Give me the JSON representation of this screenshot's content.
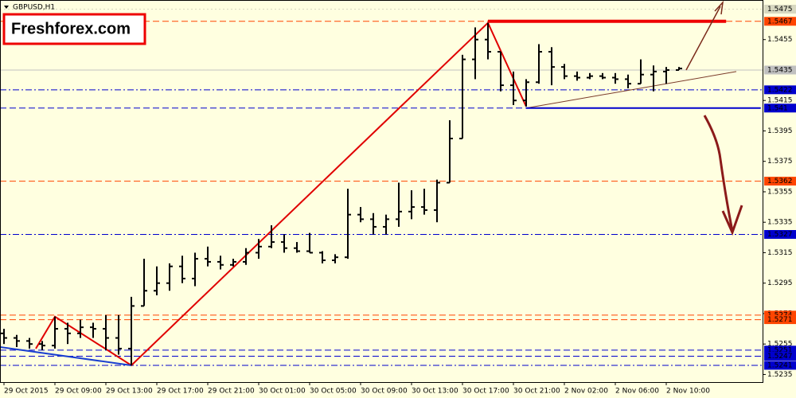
{
  "chart_data": {
    "type": "ohlc",
    "title": "GBPUSD,H1",
    "watermark": "Freshforex.com",
    "categories": [
      "29 Oct 2015",
      null,
      null,
      null,
      "29 Oct 09:00",
      null,
      null,
      null,
      "29 Oct 13:00",
      null,
      null,
      null,
      "29 Oct 17:00",
      null,
      null,
      null,
      "29 Oct 21:00",
      null,
      null,
      null,
      "30 Oct 01:00",
      null,
      null,
      null,
      "30 Oct 05:00",
      null,
      null,
      null,
      "30 Oct 09:00",
      null,
      null,
      null,
      "30 Oct 13:00",
      null,
      null,
      null,
      "30 Oct 17:00",
      null,
      null,
      null,
      "30 Oct 21:00",
      null,
      null,
      null,
      "2 Nov 02:00",
      null,
      null,
      null,
      "2 Nov 06:00",
      null,
      null,
      null,
      "2 Nov 10:00",
      null
    ],
    "ohlc": [
      [
        1.5262,
        1.5265,
        1.5255,
        1.5259
      ],
      [
        1.5259,
        1.5261,
        1.5253,
        1.5257
      ],
      [
        1.5257,
        1.5259,
        1.5252,
        1.5255
      ],
      [
        1.5255,
        1.5257,
        1.5251,
        1.5254
      ],
      [
        1.5254,
        1.5273,
        1.5252,
        1.5265
      ],
      [
        1.5265,
        1.5269,
        1.5255,
        1.5262
      ],
      [
        1.5262,
        1.5271,
        1.5259,
        1.5266
      ],
      [
        1.5266,
        1.5269,
        1.5259,
        1.5265
      ],
      [
        1.5265,
        1.5274,
        1.5251,
        1.5259
      ],
      [
        1.5259,
        1.5274,
        1.5248,
        1.5252
      ],
      [
        1.5252,
        1.5286,
        1.5241,
        1.528
      ],
      [
        1.528,
        1.5311,
        1.528,
        1.529
      ],
      [
        1.529,
        1.5306,
        1.5287,
        1.5295
      ],
      [
        1.5295,
        1.5308,
        1.529,
        1.5306
      ],
      [
        1.5306,
        1.5313,
        1.5295,
        1.5298
      ],
      [
        1.5298,
        1.5315,
        1.5293,
        1.5311
      ],
      [
        1.5311,
        1.5319,
        1.5306,
        1.5309
      ],
      [
        1.5309,
        1.5313,
        1.5304,
        1.5307
      ],
      [
        1.5307,
        1.5311,
        1.5306,
        1.5309
      ],
      [
        1.5309,
        1.5318,
        1.5307,
        1.5315
      ],
      [
        1.5315,
        1.5324,
        1.5311,
        1.5319
      ],
      [
        1.5319,
        1.5333,
        1.5318,
        1.5322
      ],
      [
        1.5322,
        1.5327,
        1.5315,
        1.5318
      ],
      [
        1.5318,
        1.5322,
        1.5315,
        1.5316
      ],
      [
        1.5316,
        1.5328,
        1.5315,
        1.5315
      ],
      [
        1.5315,
        1.5316,
        1.5308,
        1.531
      ],
      [
        1.531,
        1.5314,
        1.5308,
        1.5312
      ],
      [
        1.5312,
        1.5357,
        1.5311,
        1.534
      ],
      [
        1.534,
        1.5345,
        1.5335,
        1.5337
      ],
      [
        1.5337,
        1.5341,
        1.5327,
        1.5332
      ],
      [
        1.5332,
        1.534,
        1.5327,
        1.5337
      ],
      [
        1.5337,
        1.5361,
        1.5332,
        1.5342
      ],
      [
        1.5342,
        1.5356,
        1.5337,
        1.5345
      ],
      [
        1.5345,
        1.5357,
        1.534,
        1.5343
      ],
      [
        1.5343,
        1.5363,
        1.5335,
        1.5361
      ],
      [
        1.5361,
        1.5402,
        1.5361,
        1.539
      ],
      [
        1.539,
        1.5445,
        1.539,
        1.5442
      ],
      [
        1.5442,
        1.5463,
        1.5429,
        1.5455
      ],
      [
        1.5455,
        1.5466,
        1.5442,
        1.5447
      ],
      [
        1.5447,
        1.5447,
        1.5421,
        1.5425
      ],
      [
        1.5425,
        1.5434,
        1.5412,
        1.5415
      ],
      [
        1.5415,
        1.5429,
        1.5411,
        1.5427
      ],
      [
        1.5427,
        1.5452,
        1.5426,
        1.5447
      ],
      [
        1.5447,
        1.545,
        1.5425,
        1.5437
      ],
      [
        1.5437,
        1.5439,
        1.5429,
        1.5431
      ],
      [
        1.5431,
        1.5434,
        1.5428,
        1.543
      ],
      [
        1.543,
        1.5433,
        1.5429,
        1.5431
      ],
      [
        1.5431,
        1.5433,
        1.5429,
        1.543
      ],
      [
        1.543,
        1.5433,
        1.5426,
        1.5429
      ],
      [
        1.5429,
        1.5432,
        1.5423,
        1.5426
      ],
      [
        1.5426,
        1.5442,
        1.5426,
        1.5432
      ],
      [
        1.5432,
        1.5438,
        1.5421,
        1.5434
      ],
      [
        1.5434,
        1.5437,
        1.5426,
        1.5435
      ],
      [
        1.5435,
        1.5437,
        1.5435,
        1.5436
      ]
    ],
    "bar_color": "#000000",
    "ylim": [
      1.523,
      1.5481
    ],
    "yticks": [
      1.5235,
      1.5255,
      1.5275,
      1.5295,
      1.5315,
      1.5335,
      1.5355,
      1.5375,
      1.5395,
      1.5415,
      1.5455
    ],
    "levels": [
      {
        "value": 1.5475,
        "color": "#d8d8c0",
        "dash": "dot"
      },
      {
        "value": 1.5467,
        "color": "#ff4500",
        "dash": "dash"
      },
      {
        "value": 1.5435,
        "color": "#c0c0c0",
        "dash": "solid"
      },
      {
        "value": 1.5422,
        "color": "#0000cd",
        "dash": "dashdot"
      },
      {
        "value": 1.541,
        "color": "#0000cd",
        "dash": "dash"
      },
      {
        "value": 1.5362,
        "color": "#ff4500",
        "dash": "dash"
      },
      {
        "value": 1.5327,
        "color": "#0000cd",
        "dash": "dashdot"
      },
      {
        "value": 1.5274,
        "color": "#ff4500",
        "dash": "dash"
      },
      {
        "value": 1.5271,
        "color": "#ff4500",
        "dash": "dash"
      },
      {
        "value": 1.5251,
        "color": "#0000cd",
        "dash": "dash"
      },
      {
        "value": 1.5247,
        "color": "#0000cd",
        "dash": "dash"
      },
      {
        "value": 1.5241,
        "color": "#0000cd",
        "dash": "dashdot"
      }
    ],
    "lines": [
      {
        "color": "#e00000",
        "width": 2,
        "x": [
          2.5,
          4,
          10,
          38,
          41
        ],
        "y": [
          1.5252,
          1.5273,
          1.5241,
          1.5466,
          1.5411
        ]
      },
      {
        "color": "#1a3fd0",
        "width": 2,
        "x": [
          -0.3,
          10
        ],
        "y": [
          1.5253,
          1.5241
        ]
      },
      {
        "color": "#7a3a2a",
        "width": 1,
        "x": [
          41,
          57.5
        ],
        "y": [
          1.541,
          1.5434
        ]
      },
      {
        "color": "#ee0000",
        "width": 4,
        "x": [
          38,
          56.7
        ],
        "y": [
          1.5467,
          1.5467
        ]
      },
      {
        "color": "#0000cd",
        "width": 2,
        "x": [
          41,
          59.4
        ],
        "y": [
          1.541,
          1.541
        ]
      }
    ]
  }
}
